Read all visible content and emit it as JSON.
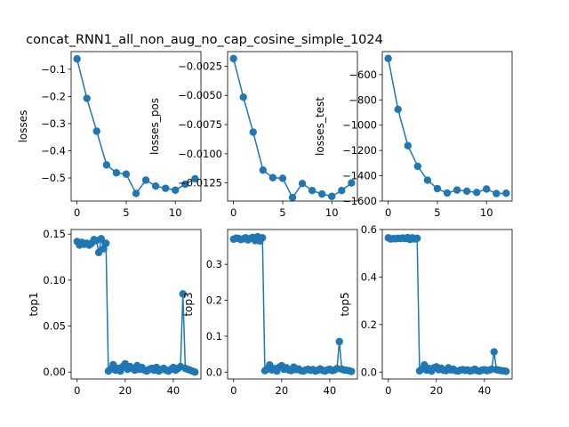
{
  "figure_title": "concat_RNN1_all_non_aug_no_cap_cosine_simple_1024",
  "marker_color": "#1f77b4",
  "chart_data": [
    {
      "type": "line",
      "ylabel": "losses",
      "xlim": [
        -0.6,
        12.6
      ],
      "ylim": [
        -0.585,
        -0.035
      ],
      "xticks": [
        0,
        5,
        10
      ],
      "xtick_labels": [
        "0",
        "5",
        "10"
      ],
      "yticks": [
        -0.5,
        -0.4,
        -0.3,
        -0.2,
        -0.1
      ],
      "ytick_labels": [
        "−0.5",
        "−0.4",
        "−0.3",
        "−0.2",
        "−0.1"
      ],
      "x": [
        0,
        1,
        2,
        3,
        4,
        5,
        6,
        7,
        8,
        9,
        10,
        11,
        12
      ],
      "y": [
        -0.062,
        -0.207,
        -0.328,
        -0.452,
        -0.481,
        -0.486,
        -0.557,
        -0.508,
        -0.53,
        -0.538,
        -0.545,
        -0.523,
        -0.503
      ]
    },
    {
      "type": "line",
      "ylabel": "losses_pos",
      "xlim": [
        -0.6,
        12.6
      ],
      "ylim": [
        -0.01405,
        -0.00125
      ],
      "xticks": [
        0,
        5,
        10
      ],
      "xtick_labels": [
        "0",
        "5",
        "10"
      ],
      "yticks": [
        -0.0125,
        -0.01,
        -0.0075,
        -0.005,
        -0.0025
      ],
      "ytick_labels": [
        "−0.0125",
        "−0.0100",
        "−0.0075",
        "−0.0050",
        "−0.0025"
      ],
      "x": [
        0,
        1,
        2,
        3,
        4,
        5,
        6,
        7,
        8,
        9,
        10,
        11,
        12
      ],
      "y": [
        -0.00185,
        -0.00515,
        -0.00815,
        -0.0114,
        -0.01205,
        -0.0121,
        -0.01375,
        -0.01255,
        -0.01315,
        -0.01345,
        -0.01365,
        -0.01315,
        -0.0125
      ]
    },
    {
      "type": "line",
      "ylabel": "losses_test",
      "xlim": [
        -0.6,
        12.6
      ],
      "ylim": [
        -1600,
        -418
      ],
      "xticks": [
        0,
        5,
        10
      ],
      "xtick_labels": [
        "0",
        "5",
        "10"
      ],
      "yticks": [
        -1600,
        -1400,
        -1200,
        -1000,
        -800,
        -600
      ],
      "ytick_labels": [
        "−1600",
        "−1400",
        "−1200",
        "−1000",
        "−800",
        "−600"
      ],
      "x": [
        0,
        1,
        2,
        3,
        4,
        5,
        6,
        7,
        8,
        9,
        10,
        11,
        12
      ],
      "y": [
        -472,
        -875,
        -1162,
        -1325,
        -1435,
        -1502,
        -1537,
        -1513,
        -1522,
        -1532,
        -1505,
        -1541,
        -1538
      ]
    },
    {
      "type": "line",
      "ylabel": "top1",
      "xlim": [
        -2.5,
        51.5
      ],
      "ylim": [
        -0.0075,
        0.155
      ],
      "xticks": [
        0,
        20,
        40
      ],
      "xtick_labels": [
        "0",
        "20",
        "40"
      ],
      "yticks": [
        0,
        0.05,
        0.1,
        0.15
      ],
      "ytick_labels": [
        "0.00",
        "0.05",
        "0.10",
        "0.15"
      ],
      "x": [
        0,
        1,
        2,
        3,
        4,
        5,
        6,
        7,
        8,
        9,
        10,
        11,
        12,
        13,
        14,
        15,
        16,
        17,
        18,
        19,
        20,
        21,
        22,
        23,
        24,
        25,
        26,
        27,
        28,
        29,
        30,
        31,
        32,
        33,
        34,
        35,
        36,
        37,
        38,
        39,
        40,
        41,
        42,
        43,
        44,
        45,
        46,
        47,
        48,
        49
      ],
      "y": [
        0.142,
        0.138,
        0.141,
        0.139,
        0.14,
        0.138,
        0.14,
        0.144,
        0.143,
        0.13,
        0.145,
        0.134,
        0.14,
        0.001,
        0.003,
        0.008,
        0.002,
        0.004,
        0.001,
        0.006,
        0.009,
        0.003,
        0.006,
        0.004,
        0.002,
        0.007,
        0.003,
        0.005,
        0.002,
        0.001,
        0.003,
        0.004,
        0.002,
        0.005,
        0.001,
        0.003,
        0.004,
        0.002,
        0.001,
        0.003,
        0.005,
        0.002,
        0.004,
        0.006,
        0.085,
        0.004,
        0.003,
        0.002,
        0.001,
        0.0
      ]
    },
    {
      "type": "line",
      "ylabel": "top3",
      "xlim": [
        -2.5,
        51.5
      ],
      "ylim": [
        -0.019,
        0.397
      ],
      "xticks": [
        0,
        20,
        40
      ],
      "xtick_labels": [
        "0",
        "20",
        "40"
      ],
      "yticks": [
        0,
        0.1,
        0.2,
        0.3
      ],
      "ytick_labels": [
        "0.0",
        "0.1",
        "0.2",
        "0.3"
      ],
      "x": [
        0,
        1,
        2,
        3,
        4,
        5,
        6,
        7,
        8,
        9,
        10,
        11,
        12,
        13,
        14,
        15,
        16,
        17,
        18,
        19,
        20,
        21,
        22,
        23,
        24,
        25,
        26,
        27,
        28,
        29,
        30,
        31,
        32,
        33,
        34,
        35,
        36,
        37,
        38,
        39,
        40,
        41,
        42,
        43,
        44,
        45,
        46,
        47,
        48,
        49
      ],
      "y": [
        0.37,
        0.373,
        0.372,
        0.369,
        0.371,
        0.374,
        0.368,
        0.372,
        0.375,
        0.366,
        0.377,
        0.365,
        0.374,
        0.004,
        0.008,
        0.02,
        0.006,
        0.01,
        0.003,
        0.014,
        0.018,
        0.008,
        0.012,
        0.006,
        0.004,
        0.014,
        0.007,
        0.009,
        0.004,
        0.003,
        0.006,
        0.008,
        0.005,
        0.007,
        0.003,
        0.005,
        0.009,
        0.005,
        0.003,
        0.006,
        0.008,
        0.004,
        0.006,
        0.01,
        0.085,
        0.008,
        0.006,
        0.005,
        0.004,
        0.002
      ]
    },
    {
      "type": "line",
      "ylabel": "top5",
      "xlim": [
        -2.5,
        51.5
      ],
      "ylim": [
        -0.029,
        0.6
      ],
      "xticks": [
        0,
        20,
        40
      ],
      "xtick_labels": [
        "0",
        "20",
        "40"
      ],
      "yticks": [
        0,
        0.2,
        0.4,
        0.6
      ],
      "ytick_labels": [
        "0.0",
        "0.2",
        "0.4",
        "0.6"
      ],
      "x": [
        0,
        1,
        2,
        3,
        4,
        5,
        6,
        7,
        8,
        9,
        10,
        11,
        12,
        13,
        14,
        15,
        16,
        17,
        18,
        19,
        20,
        21,
        22,
        23,
        24,
        25,
        26,
        27,
        28,
        29,
        30,
        31,
        32,
        33,
        34,
        35,
        36,
        37,
        38,
        39,
        40,
        41,
        42,
        43,
        44,
        45,
        46,
        47,
        48,
        49
      ],
      "y": [
        0.565,
        0.56,
        0.562,
        0.561,
        0.563,
        0.562,
        0.564,
        0.562,
        0.566,
        0.558,
        0.565,
        0.56,
        0.563,
        0.005,
        0.012,
        0.03,
        0.008,
        0.015,
        0.004,
        0.018,
        0.022,
        0.01,
        0.016,
        0.008,
        0.006,
        0.018,
        0.009,
        0.012,
        0.006,
        0.004,
        0.008,
        0.01,
        0.007,
        0.009,
        0.004,
        0.007,
        0.012,
        0.006,
        0.004,
        0.008,
        0.01,
        0.006,
        0.008,
        0.012,
        0.085,
        0.01,
        0.008,
        0.006,
        0.005,
        0.003
      ]
    }
  ]
}
